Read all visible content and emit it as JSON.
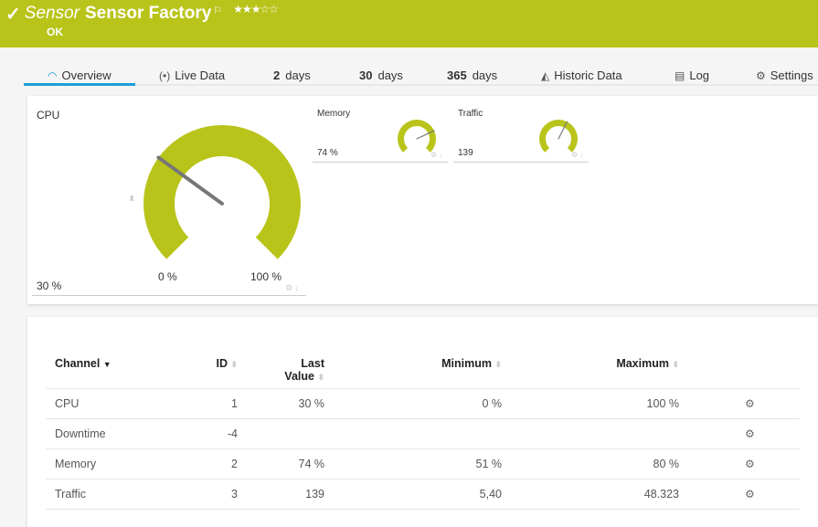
{
  "header": {
    "prefix": "Sensor",
    "title": "Sensor Factory",
    "status": "OK",
    "stars": "★★★☆☆",
    "rating": 3,
    "color": "#b9c41a"
  },
  "tabs": [
    {
      "label": "Overview",
      "icon": "gauge-icon"
    },
    {
      "label": "Live Data",
      "icon": "broadcast-icon"
    },
    {
      "num": "2",
      "label": "days"
    },
    {
      "num": "30",
      "label": "days"
    },
    {
      "num": "365",
      "label": "days"
    },
    {
      "label": "Historic Data",
      "icon": "area-chart-icon"
    },
    {
      "label": "Log",
      "icon": "list-icon"
    },
    {
      "label": "Settings",
      "icon": "gear-icon"
    }
  ],
  "gauges": {
    "cpu": {
      "name": "CPU",
      "value": "30 %",
      "percent": 30,
      "min_label": "0 %",
      "max_label": "100 %",
      "avg_marker": "x̄"
    },
    "memory": {
      "name": "Memory",
      "value": "74 %",
      "percent": 74
    },
    "traffic": {
      "name": "Traffic",
      "value": "139",
      "percent": 60
    }
  },
  "table": {
    "headers": {
      "channel": "Channel",
      "id": "ID",
      "last_line1": "Last",
      "last_line2": "Value",
      "minimum": "Minimum",
      "maximum": "Maximum"
    },
    "rows": [
      {
        "channel": "CPU",
        "id": "1",
        "last": "30 %",
        "min": "0 %",
        "max": "100 %"
      },
      {
        "channel": "Downtime",
        "id": "-4",
        "last": "",
        "min": "",
        "max": ""
      },
      {
        "channel": "Memory",
        "id": "2",
        "last": "74 %",
        "min": "51 %",
        "max": "80 %"
      },
      {
        "channel": "Traffic",
        "id": "3",
        "last": "139",
        "min": "5,40",
        "max": "48.323"
      }
    ]
  }
}
